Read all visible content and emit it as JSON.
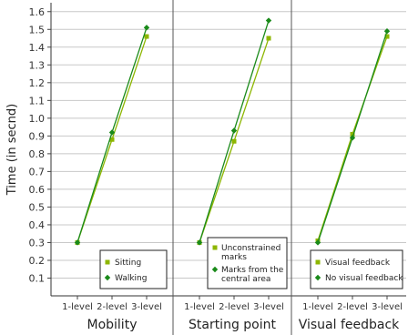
{
  "chart_data": {
    "type": "line",
    "ylabel": "Time (in secnd)",
    "ylim": [
      0,
      1.65
    ],
    "yticks": [
      "0.1",
      "0.2",
      "0.3",
      "0.4",
      "0.5",
      "0.6",
      "0.7",
      "0.8",
      "0.9",
      "1.0",
      "1.1",
      "1.2",
      "1.3",
      "1.4",
      "1.5",
      "1.6"
    ],
    "grid": "horizontal",
    "categories": [
      "1-level",
      "2-level",
      "3-level"
    ],
    "colors": {
      "light": "#8db600",
      "dark": "#1a8a1a"
    },
    "panels": [
      {
        "title": "Mobility",
        "legend": "bottom-right",
        "series": [
          {
            "name": "Sitting",
            "marker": "square",
            "color": "#8db600",
            "values": [
              0.3,
              0.88,
              1.46
            ]
          },
          {
            "name": "Walking",
            "marker": "diamond",
            "color": "#1a8a1a",
            "values": [
              0.3,
              0.92,
              1.51
            ]
          }
        ]
      },
      {
        "title": "Starting point",
        "legend": "bottom-right",
        "series": [
          {
            "name": "Unconstrained marks",
            "marker": "square",
            "color": "#8db600",
            "values": [
              0.3,
              0.87,
              1.45
            ]
          },
          {
            "name": "Marks from the central area",
            "marker": "diamond",
            "color": "#1a8a1a",
            "values": [
              0.3,
              0.93,
              1.55
            ]
          }
        ]
      },
      {
        "title": "Visual feedback",
        "legend": "bottom-right",
        "series": [
          {
            "name": "Visual feedback",
            "marker": "square",
            "color": "#8db600",
            "values": [
              0.31,
              0.91,
              1.46
            ]
          },
          {
            "name": "No visual feedback",
            "marker": "diamond",
            "color": "#1a8a1a",
            "values": [
              0.3,
              0.89,
              1.49
            ]
          }
        ]
      }
    ]
  }
}
